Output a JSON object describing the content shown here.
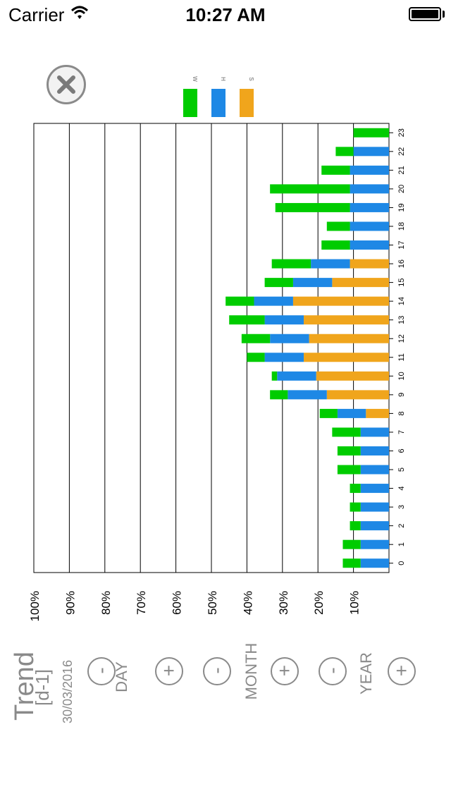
{
  "status_bar": {
    "carrier": "Carrier",
    "time": "10:27 AM"
  },
  "legend": [
    {
      "label": "W",
      "color": "#00cc00"
    },
    {
      "label": "H",
      "color": "#1e88e5"
    },
    {
      "label": "S",
      "color": "#f0a51c"
    }
  ],
  "colors": {
    "w": "#00cc00",
    "h": "#1e88e5",
    "s": "#f0a51c"
  },
  "trend": {
    "title": "Trend",
    "subtitle": "[d-1]",
    "date": "30/03/2016"
  },
  "controls": {
    "day": {
      "label": "DAY",
      "minus": "-",
      "plus": "+"
    },
    "month": {
      "label": "MONTH",
      "minus": "-",
      "plus": "+"
    },
    "year": {
      "label": "YEAR",
      "minus": "-",
      "plus": "+"
    }
  },
  "chart_data": {
    "type": "bar",
    "orientation": "horizontal-stacked",
    "categories": [
      "0",
      "1",
      "2",
      "3",
      "4",
      "5",
      "6",
      "7",
      "8",
      "9",
      "10",
      "11",
      "12",
      "13",
      "14",
      "15",
      "16",
      "17",
      "18",
      "19",
      "20",
      "21",
      "22",
      "23"
    ],
    "series": [
      {
        "name": "S",
        "values": [
          0,
          0,
          0,
          0,
          0,
          0,
          0,
          0,
          6.5,
          17.5,
          20.5,
          24,
          22.5,
          24,
          27,
          16,
          11,
          0,
          0,
          0,
          0,
          0,
          0,
          0
        ]
      },
      {
        "name": "H",
        "values": [
          8,
          8,
          8,
          8,
          8,
          8,
          8,
          8,
          8,
          11,
          11,
          11,
          11,
          11,
          11,
          11,
          11,
          11,
          11,
          11,
          11,
          11,
          10,
          0
        ]
      },
      {
        "name": "W",
        "values": [
          5,
          5,
          3,
          3,
          3,
          6.5,
          6.5,
          8,
          5,
          5,
          1.5,
          5,
          8,
          10,
          8,
          8,
          11,
          8,
          6.5,
          21,
          22.5,
          8,
          5,
          10
        ]
      }
    ],
    "xlim": [
      0,
      100
    ],
    "tick_labels": [
      "100%",
      "90%",
      "80%",
      "70%",
      "60%",
      "50%",
      "40%",
      "30%",
      "20%",
      "10%"
    ],
    "grid": true
  }
}
